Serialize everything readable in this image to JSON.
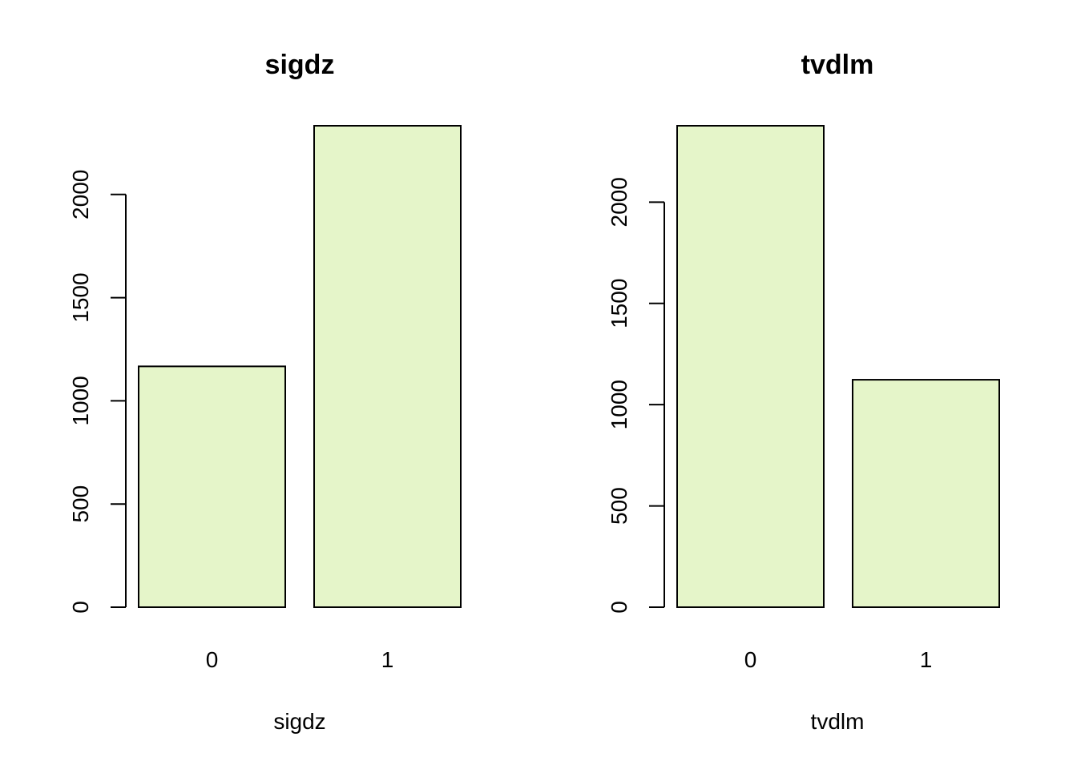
{
  "colors": {
    "bar_fill": "#e5f5c9",
    "bar_stroke": "#000000"
  },
  "chart_data": [
    {
      "type": "bar",
      "title": "sigdz",
      "xlabel": "sigdz",
      "ylabel": "",
      "categories": [
        "0",
        "1"
      ],
      "values": [
        1167,
        2333
      ],
      "yticks": [
        0,
        500,
        1000,
        1500,
        2000
      ],
      "ylim": [
        0,
        2333
      ],
      "grid": false
    },
    {
      "type": "bar",
      "title": "tvdlm",
      "xlabel": "tvdlm",
      "ylabel": "",
      "categories": [
        "0",
        "1"
      ],
      "values": [
        2377,
        1123
      ],
      "yticks": [
        0,
        500,
        1000,
        1500,
        2000
      ],
      "ylim": [
        0,
        2377
      ],
      "grid": false
    }
  ]
}
